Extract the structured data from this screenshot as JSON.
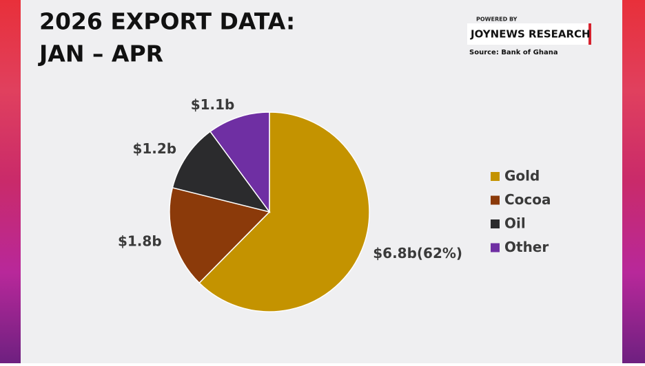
{
  "chart_data": {
    "type": "pie",
    "title": [
      "2026 EXPORT DATA:",
      "JAN – APR"
    ],
    "branding": {
      "powered_by": "POWERED BY",
      "brand": "JOYNEWS RESEARCH",
      "source": "Source: Bank of Ghana"
    },
    "categories": [
      "Gold",
      "Cocoa",
      "Oil",
      "Other"
    ],
    "values": [
      6.8,
      1.8,
      1.2,
      1.1
    ],
    "value_labels": [
      "$6.8b(62%)",
      "$1.8b",
      "$1.2b",
      "$1.1b"
    ],
    "colors": [
      "#c49300",
      "#8b3a0a",
      "#2b2b2d",
      "#6f2fa3"
    ],
    "legend": "right"
  }
}
